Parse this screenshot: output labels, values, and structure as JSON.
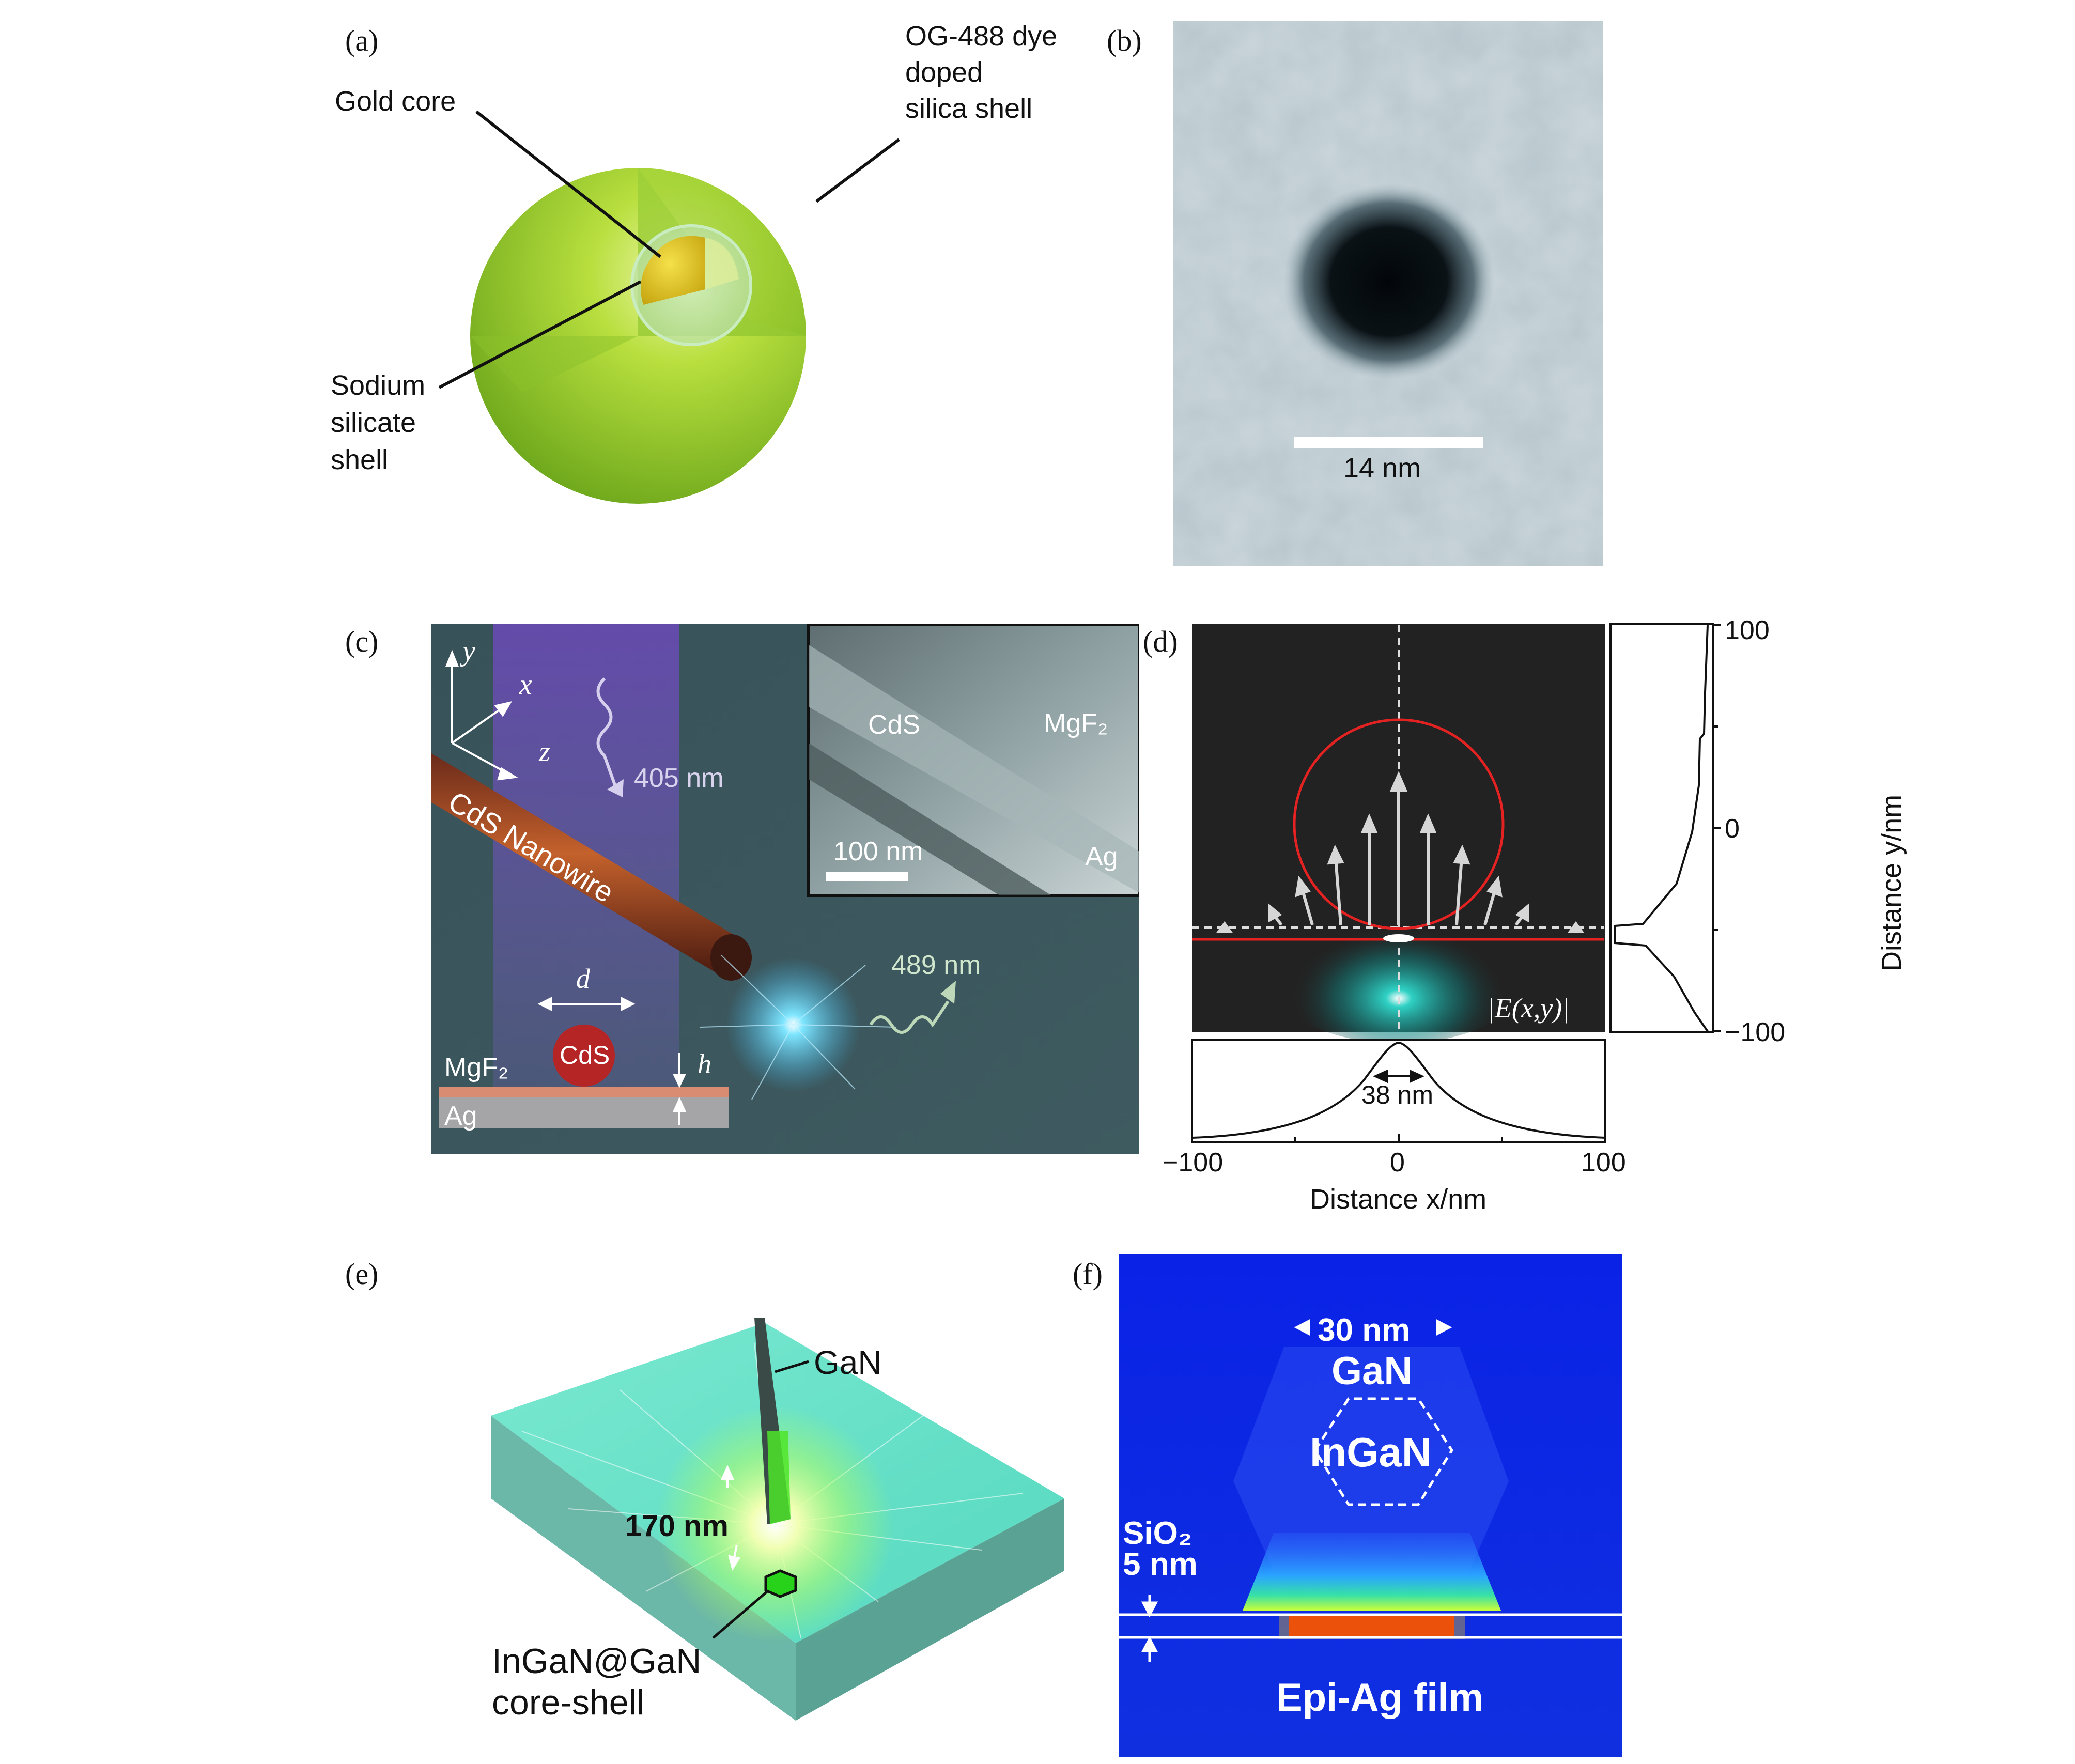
{
  "panels": {
    "a": {
      "label": "(a)",
      "gold_core": "Gold core",
      "og_line1": "OG-488 dye",
      "og_line2": "doped",
      "og_line3": "silica shell",
      "sodium_line1": "Sodium",
      "sodium_line2": "silicate",
      "sodium_line3": "shell"
    },
    "b": {
      "label": "(b)",
      "scale_bar": "14 nm"
    },
    "c": {
      "label": "(c)",
      "axis_y": "y",
      "axis_x": "x",
      "axis_z": "z",
      "wave_in": "405 nm",
      "nanowire": "CdS Nanowire",
      "wave_out": "489 nm",
      "inset_cds": "CdS",
      "inset_mgf2": "MgF₂",
      "inset_ag": "Ag",
      "inset_scale": "100 nm",
      "d_label": "d",
      "cds_particle": "CdS",
      "mgf2": "MgF₂",
      "ag": "Ag",
      "h_label": "h"
    },
    "d": {
      "label": "(d)",
      "field_label": "|E(x,y)|",
      "fwhm": "38 nm",
      "x_axis_label": "Distance x/nm",
      "x_ticks": [
        "−100",
        "0",
        "100"
      ],
      "y_axis_label": "Distance y/nm",
      "y_ticks": [
        "100",
        "0",
        "−100"
      ]
    },
    "e": {
      "label": "(e)",
      "gan": "GaN",
      "distance": "170 nm",
      "core_line1": "InGaN@GaN",
      "core_line2": "core-shell"
    },
    "f": {
      "label": "(f)",
      "width": "30 nm",
      "gan": "GaN",
      "ingan": "InGaN",
      "sio2": "SiO₂",
      "thick": "5 nm",
      "film": "Epi-Ag film"
    }
  },
  "colors": {
    "ring": "#e52222",
    "field_teal": "#2fd1c4",
    "plot_line": "#111111",
    "f_background": "#0e28e8"
  }
}
